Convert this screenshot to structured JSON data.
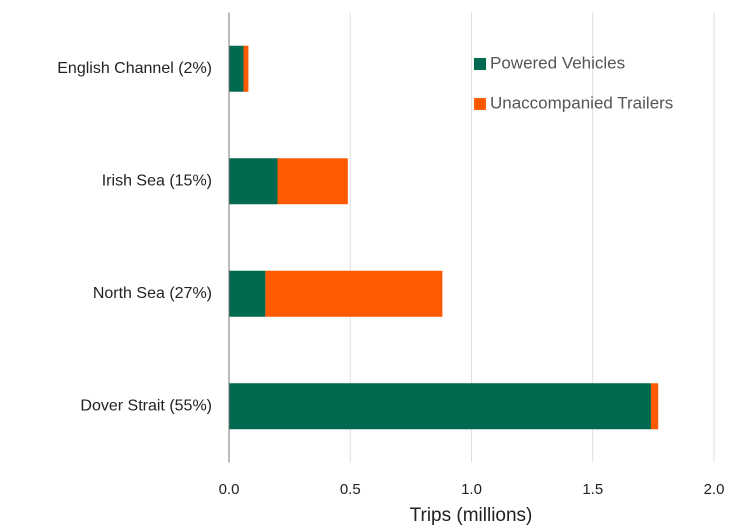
{
  "chart_data": {
    "type": "stacked-bar-horizontal",
    "x_label": "Trips (millions)",
    "categories": [
      "English Channel (2%)",
      "Irish Sea (15%)",
      "North Sea (27%)",
      "Dover Strait (55%)"
    ],
    "series": [
      {
        "name": "Powered Vehicles",
        "color": "#00694f",
        "values": [
          0.06,
          0.2,
          0.15,
          1.74
        ]
      },
      {
        "name": "Unaccompanied Trailers",
        "color": "#ff5a00",
        "values": [
          0.02,
          0.29,
          0.73,
          0.03
        ]
      }
    ],
    "xlim": [
      0,
      2
    ],
    "xticks": [
      {
        "value": 0,
        "label": "0.0"
      },
      {
        "value": 0.5,
        "label": "0.5"
      },
      {
        "value": 1,
        "label": "1.0"
      },
      {
        "value": 1.5,
        "label": "1.5"
      },
      {
        "value": 2,
        "label": "2.0"
      }
    ],
    "grid": true,
    "legend": "top-right"
  }
}
